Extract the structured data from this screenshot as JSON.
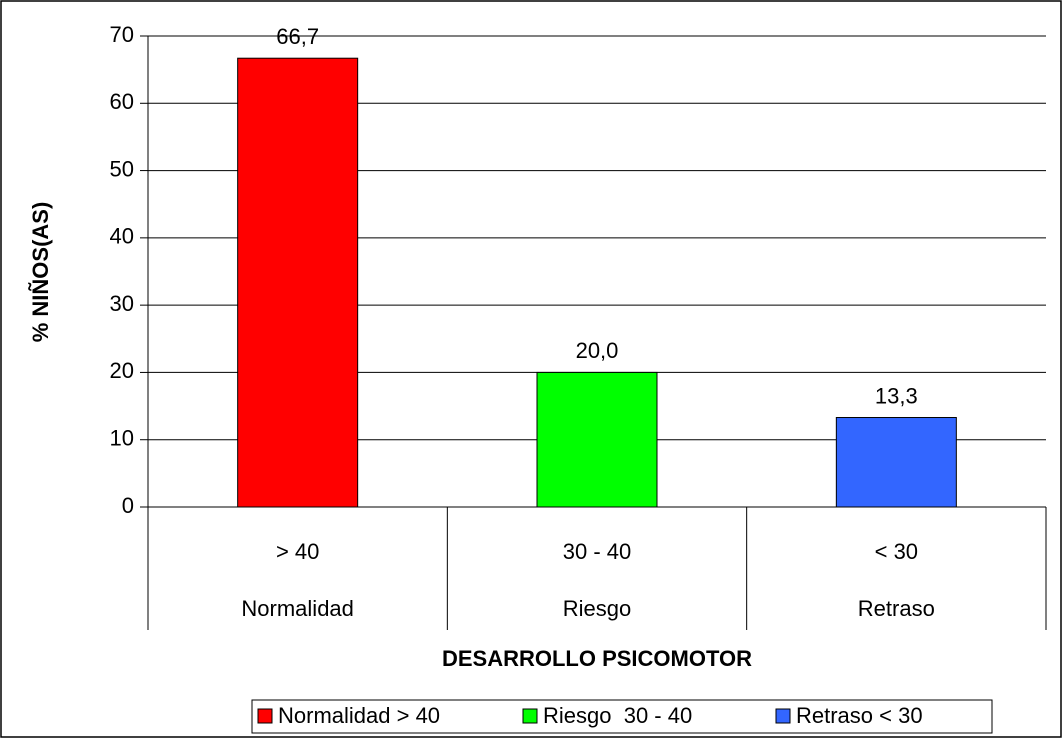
{
  "chart_data": {
    "type": "bar",
    "y_label": "% NIÑOS(AS)",
    "x_label": "DESARROLLO PSICOMOTOR",
    "categories": [
      "> 40",
      "30 - 40",
      "< 30"
    ],
    "category_groups": [
      "Normalidad",
      "Riesgo",
      "Retraso"
    ],
    "values": [
      66.7,
      20.0,
      13.3
    ],
    "value_labels": [
      "66,7",
      "20,0",
      "13,3"
    ],
    "colors": [
      "#ff0000",
      "#00ff00",
      "#3366ff"
    ],
    "legend": [
      "Normalidad > 40",
      "Riesgo  30 - 40",
      "Retraso < 30"
    ],
    "ylim": [
      0,
      70
    ],
    "yticks": [
      0,
      10,
      20,
      30,
      40,
      50,
      60,
      70
    ],
    "grid": true
  }
}
